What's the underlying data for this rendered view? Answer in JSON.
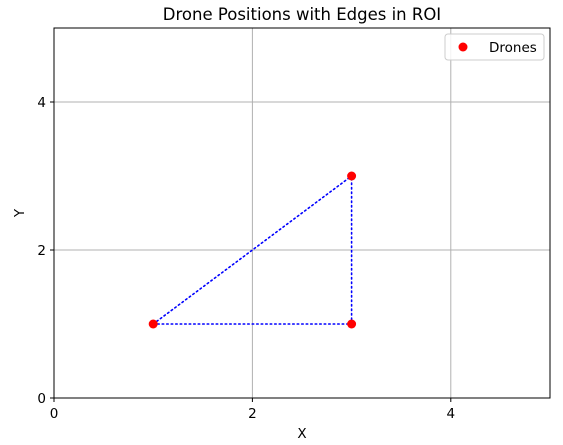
{
  "chart_data": {
    "type": "scatter",
    "title": "Drone Positions with Edges in ROI",
    "xlabel": "X",
    "ylabel": "Y",
    "xlim": [
      0,
      5
    ],
    "ylim": [
      0,
      5
    ],
    "xticks": [
      0,
      2,
      4
    ],
    "yticks": [
      0,
      2,
      4
    ],
    "xtick_labels": [
      "0",
      "2",
      "4"
    ],
    "ytick_labels": [
      "0",
      "2",
      "4"
    ],
    "grid": true,
    "legend_position": "upper right",
    "series": [
      {
        "name": "Drones",
        "points": [
          {
            "x": 1,
            "y": 1
          },
          {
            "x": 3,
            "y": 1
          },
          {
            "x": 3,
            "y": 3
          }
        ],
        "color": "#ff0000"
      }
    ],
    "edges": [
      {
        "from": [
          1,
          1
        ],
        "to": [
          3,
          1
        ]
      },
      {
        "from": [
          3,
          1
        ],
        "to": [
          3,
          3
        ]
      },
      {
        "from": [
          1,
          1
        ],
        "to": [
          3,
          3
        ]
      }
    ],
    "edge_color": "#0000ff",
    "edge_style": "dotted"
  }
}
